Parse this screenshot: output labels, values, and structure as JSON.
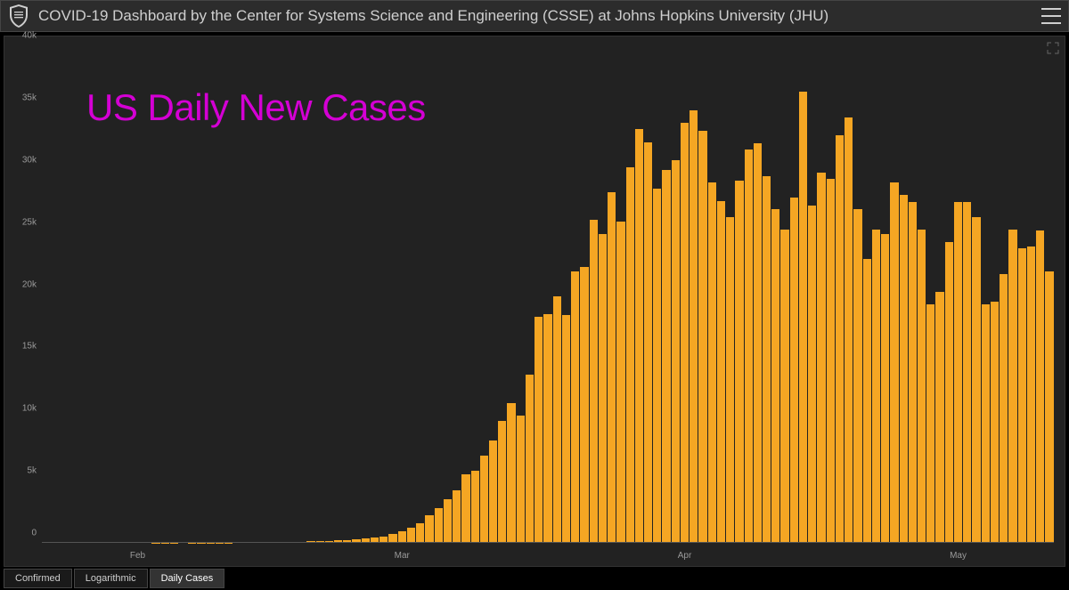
{
  "header": {
    "title": "COVID-19 Dashboard by the Center for Systems Science and Engineering (CSSE) at Johns Hopkins University (JHU)"
  },
  "overlay": {
    "title": "US Daily New Cases",
    "color": "#d400d4",
    "fontsize": 42
  },
  "chart": {
    "type": "bar",
    "bar_color": "#f5a623",
    "background_color": "#222222",
    "axis_label_color": "#9a9a9a",
    "axis_fontsize": 10,
    "ylim": [
      0,
      40000
    ],
    "y_ticks": [
      {
        "value": 0,
        "label": "0"
      },
      {
        "value": 5000,
        "label": "5k"
      },
      {
        "value": 10000,
        "label": "10k"
      },
      {
        "value": 15000,
        "label": "15k"
      },
      {
        "value": 20000,
        "label": "20k"
      },
      {
        "value": 25000,
        "label": "25k"
      },
      {
        "value": 30000,
        "label": "30k"
      },
      {
        "value": 35000,
        "label": "35k"
      },
      {
        "value": 40000,
        "label": "40k"
      }
    ],
    "x_ticks": [
      {
        "index": 10,
        "label": "Feb"
      },
      {
        "index": 39,
        "label": "Mar"
      },
      {
        "index": 70,
        "label": "Apr"
      },
      {
        "index": 100,
        "label": "May"
      }
    ],
    "values": [
      0,
      0,
      50,
      40,
      60,
      50,
      80,
      70,
      90,
      60,
      50,
      40,
      30,
      20,
      30,
      40,
      30,
      20,
      10,
      20,
      30,
      40,
      50,
      60,
      80,
      70,
      60,
      90,
      100,
      120,
      150,
      180,
      200,
      250,
      300,
      350,
      400,
      500,
      700,
      900,
      1200,
      1600,
      2200,
      2800,
      3500,
      4200,
      5500,
      5800,
      7000,
      8200,
      9800,
      11200,
      10200,
      13500,
      18200,
      18400,
      19800,
      18300,
      21800,
      22200,
      26000,
      24800,
      28200,
      25800,
      30200,
      33300,
      32200,
      28500,
      30000,
      30800,
      33800,
      34800,
      33100,
      29000,
      27500,
      26200,
      29100,
      31600,
      32100,
      29500,
      26800,
      25200,
      27800,
      36300,
      27100,
      29800,
      29300,
      32800,
      34200,
      26800,
      22800,
      25200,
      24800,
      29000,
      28000,
      27400,
      25200,
      19200,
      20200,
      24200,
      27400,
      27400,
      26200,
      19200,
      19400,
      21600,
      25200,
      23700,
      23800,
      25100,
      21800
    ]
  },
  "tabs": {
    "items": [
      {
        "label": "Confirmed",
        "active": false
      },
      {
        "label": "Logarithmic",
        "active": false
      },
      {
        "label": "Daily Cases",
        "active": true
      }
    ]
  }
}
